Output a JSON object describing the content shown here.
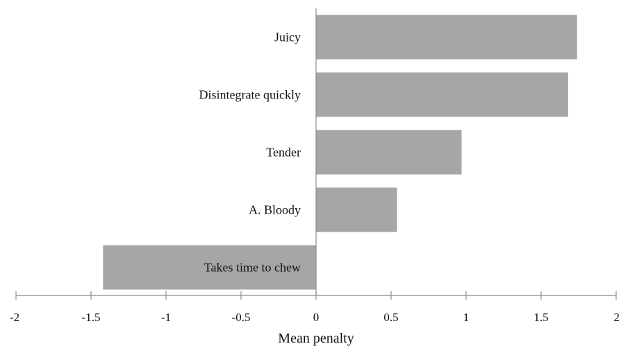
{
  "chart_data": {
    "type": "bar",
    "orientation": "horizontal",
    "title": "",
    "xlabel": "Mean penalty",
    "ylabel": "",
    "xlim": [
      -2,
      2
    ],
    "x_ticks": [
      -2,
      -1.5,
      -1,
      -0.5,
      0,
      0.5,
      1,
      1.5,
      2
    ],
    "x_tick_labels": [
      "-2",
      "-1.5",
      "-1",
      "-0.5",
      "0",
      "0.5",
      "1",
      "1.5",
      "2"
    ],
    "categories": [
      "Juicy",
      "Disintegrate quickly",
      "Tender",
      "A. Bloody",
      "Takes time to chew"
    ],
    "values": [
      1.74,
      1.68,
      0.97,
      0.54,
      -1.42
    ],
    "bar_color": "#a6a6a6",
    "axis_color": "#8c8c8c",
    "grid": false,
    "legend": "none"
  }
}
